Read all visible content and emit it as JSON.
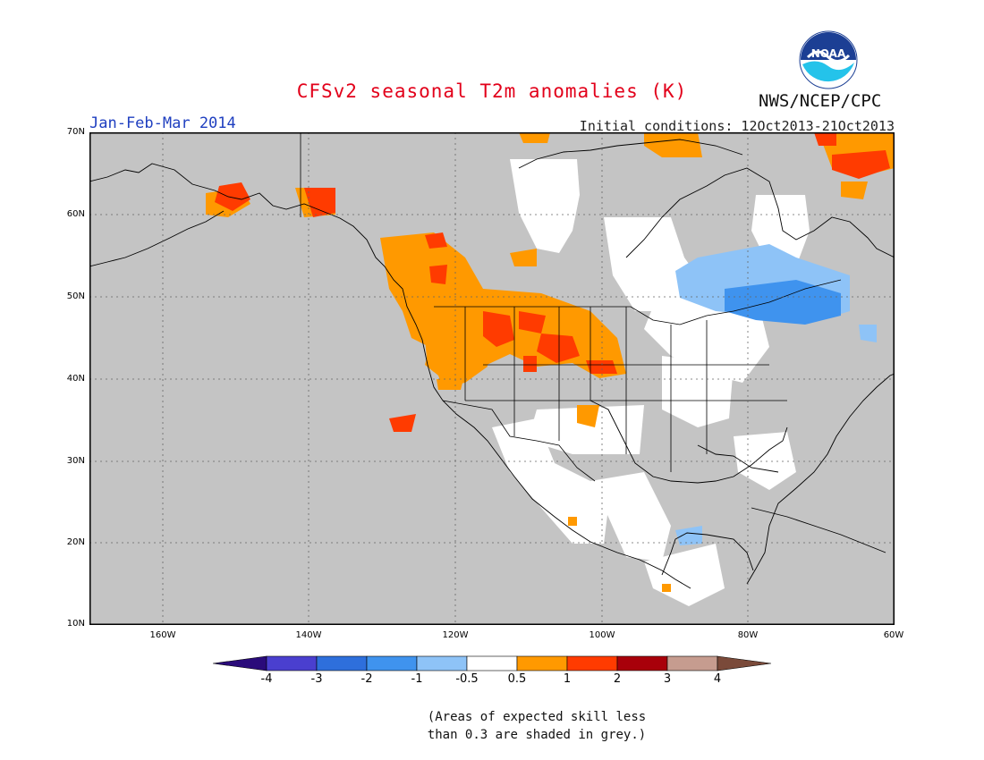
{
  "title": "CFSv2 seasonal T2m anomalies (K)",
  "agency": "NWS/NCEP/CPC",
  "logo_text": "NOAA",
  "period": "Jan-Feb-Mar 2014",
  "initial_conditions": "Initial conditions: 12Oct2013-21Oct2013",
  "latitude_labels": [
    "70N",
    "60N",
    "50N",
    "40N",
    "30N",
    "20N",
    "10N"
  ],
  "longitude_labels": [
    "160W",
    "140W",
    "120W",
    "100W",
    "80W",
    "60W"
  ],
  "colorbar": {
    "labels": [
      "-4",
      "-3",
      "-2",
      "-1",
      "-0.5",
      "0.5",
      "1",
      "2",
      "3",
      "4"
    ],
    "colors": [
      "#2a0b7a",
      "#4a3fcf",
      "#2e6fdc",
      "#3f93ee",
      "#8ec3f7",
      "#ffffff",
      "#ff9900",
      "#ff3b00",
      "#a8000a",
      "#c69c8f",
      "#7a4a3a"
    ]
  },
  "note_line1": "(Areas of expected skill less",
  "note_line2": "than 0.3 are shaded in grey.)",
  "map_colors": {
    "no_skill": "#c4c4c4",
    "neutral": "#ffffff",
    "warm_0_5_1": "#ff9900",
    "warm_1_2": "#ff3b00",
    "cool_0_5_1": "#8ec3f7",
    "cool_1_2": "#3f93ee"
  }
}
